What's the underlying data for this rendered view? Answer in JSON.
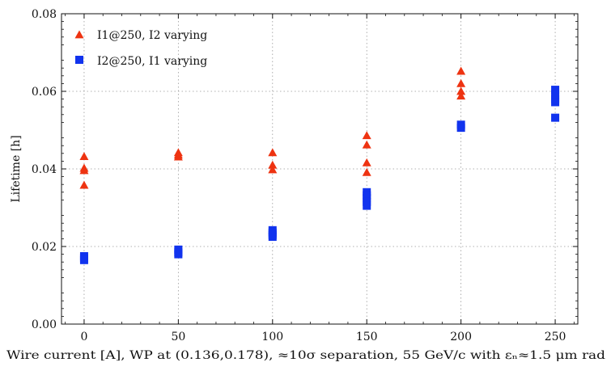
{
  "chart_data": {
    "type": "scatter",
    "xlabel": "Wire current [A], WP at (0.136,0.178), ≈10σ separation, 55 GeV/c with εₙ≈1.5 μm rad",
    "ylabel": "Lifetime [h]",
    "xlim": [
      -12,
      262
    ],
    "ylim": [
      0.0,
      0.08
    ],
    "x_ticks": [
      0,
      50,
      100,
      150,
      200,
      250
    ],
    "x_tick_labels": [
      "0",
      "50",
      "100",
      "150",
      "200",
      "250"
    ],
    "y_ticks": [
      0.0,
      0.02,
      0.04,
      0.06,
      0.08
    ],
    "y_tick_labels": [
      "0.00",
      "0.02",
      "0.04",
      "0.06",
      "0.08"
    ],
    "grid": true,
    "legend_position": "top-left",
    "series": [
      {
        "name": "I1@250, I2 varying",
        "marker": "triangle",
        "color": "#ee3311",
        "points": [
          [
            0,
            0.0432
          ],
          [
            0,
            0.0402
          ],
          [
            0,
            0.0396
          ],
          [
            0,
            0.0358
          ],
          [
            50,
            0.0442
          ],
          [
            50,
            0.0436
          ],
          [
            50,
            0.0431
          ],
          [
            100,
            0.0442
          ],
          [
            100,
            0.041
          ],
          [
            100,
            0.0398
          ],
          [
            150,
            0.0486
          ],
          [
            150,
            0.0462
          ],
          [
            150,
            0.0416
          ],
          [
            150,
            0.0391
          ],
          [
            200,
            0.0652
          ],
          [
            200,
            0.062
          ],
          [
            200,
            0.06
          ],
          [
            200,
            0.0588
          ]
        ]
      },
      {
        "name": "I2@250, I1 varying",
        "marker": "square",
        "color": "#1133ee",
        "points": [
          [
            0,
            0.0175
          ],
          [
            0,
            0.017
          ],
          [
            0,
            0.0165
          ],
          [
            50,
            0.0192
          ],
          [
            50,
            0.0185
          ],
          [
            50,
            0.018
          ],
          [
            100,
            0.0242
          ],
          [
            100,
            0.0236
          ],
          [
            100,
            0.023
          ],
          [
            100,
            0.0225
          ],
          [
            150,
            0.034
          ],
          [
            150,
            0.0332
          ],
          [
            150,
            0.0325
          ],
          [
            150,
            0.0315
          ],
          [
            150,
            0.0305
          ],
          [
            200,
            0.0514
          ],
          [
            200,
            0.0506
          ],
          [
            250,
            0.0604
          ],
          [
            250,
            0.0592
          ],
          [
            250,
            0.058
          ],
          [
            250,
            0.0572
          ],
          [
            250,
            0.0532
          ]
        ]
      }
    ]
  }
}
